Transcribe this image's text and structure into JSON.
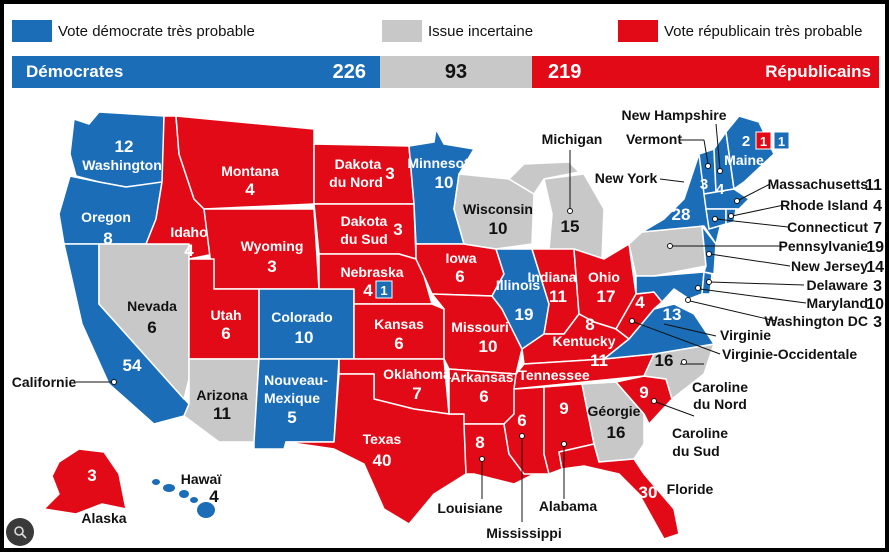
{
  "legend": {
    "dem_label": "Vote démocrate très probable",
    "toss_label": "Issue incertaine",
    "rep_label": "Vote républicain très probable"
  },
  "tally": {
    "dem_name": "Démocrates",
    "dem_votes": "226",
    "toss_votes": "93",
    "rep_votes": "219",
    "rep_name": "Républicains"
  },
  "colors": {
    "dem": "#1a6db6",
    "rep": "#e30a17",
    "toss": "#c8c8c8",
    "dem_light": "#2d7cc4"
  },
  "states": {
    "washington": {
      "name": "Washington",
      "votes": "12"
    },
    "oregon": {
      "name": "Oregon",
      "votes": "8"
    },
    "california": {
      "name": "Californie",
      "votes": "54"
    },
    "nevada": {
      "name": "Nevada",
      "votes": "6"
    },
    "idaho": {
      "name": "Idaho",
      "votes": "4"
    },
    "montana": {
      "name": "Montana",
      "votes": "4"
    },
    "wyoming": {
      "name": "Wyoming",
      "votes": "3"
    },
    "utah": {
      "name": "Utah",
      "votes": "6"
    },
    "arizona": {
      "name": "Arizona",
      "votes": "11"
    },
    "colorado": {
      "name": "Colorado",
      "votes": "10"
    },
    "new_mexico": {
      "name": "Nouveau-Mexique",
      "name1": "Nouveau-",
      "name2": "Mexique",
      "votes": "5"
    },
    "north_dakota": {
      "name1": "Dakota",
      "name2": "du Nord",
      "votes": "3"
    },
    "south_dakota": {
      "name1": "Dakota",
      "name2": "du Sud",
      "votes": "3"
    },
    "nebraska": {
      "name": "Nebraska",
      "votes": "4",
      "split": "1"
    },
    "kansas": {
      "name": "Kansas",
      "votes": "6"
    },
    "oklahoma": {
      "name": "Oklahoma",
      "votes": "7"
    },
    "texas": {
      "name": "Texas",
      "votes": "40"
    },
    "minnesota": {
      "name": "Minnesota",
      "votes": "10"
    },
    "iowa": {
      "name": "Iowa",
      "votes": "6"
    },
    "missouri": {
      "name": "Missouri",
      "votes": "10"
    },
    "arkansas": {
      "name": "Arkansas",
      "votes": "6"
    },
    "louisiana": {
      "name": "Louisiane",
      "votes": "8"
    },
    "wisconsin": {
      "name": "Wisconsin",
      "votes": "10"
    },
    "illinois": {
      "name": "Illinois",
      "votes": "19"
    },
    "michigan": {
      "name": "Michigan",
      "votes": "15"
    },
    "indiana": {
      "name": "Indiana",
      "votes": "11"
    },
    "ohio": {
      "name": "Ohio",
      "votes": "17"
    },
    "kentucky": {
      "name": "Kentucky",
      "votes": "8"
    },
    "tennessee": {
      "name": "Tennessee",
      "votes": "11"
    },
    "mississippi": {
      "name": "Mississippi",
      "votes": "6"
    },
    "alabama": {
      "name": "Alabama",
      "votes": "9"
    },
    "georgia": {
      "name": "Géorgie",
      "votes": "16"
    },
    "florida": {
      "name": "Floride",
      "votes": "30"
    },
    "south_carolina": {
      "name1": "Caroline",
      "name2": "du Sud",
      "votes": "9"
    },
    "north_carolina": {
      "name1": "Caroline",
      "name2": "du Nord",
      "votes": "16"
    },
    "virginia": {
      "name": "Virginie",
      "votes": "13"
    },
    "west_virginia": {
      "name": "Virginie-Occidentale",
      "votes": "4"
    },
    "pennsylvania": {
      "name": "Pennsylvanie",
      "votes": "19"
    },
    "new_york": {
      "name": "New York",
      "votes": "28"
    },
    "vermont": {
      "name": "Vermont",
      "votes": "3"
    },
    "new_hampshire": {
      "name": "New Hampshire",
      "votes": "4"
    },
    "maine": {
      "name": "Maine",
      "votes": "2",
      "split_rep": "1",
      "split_dem": "1"
    },
    "massachusetts": {
      "name": "Massachusetts",
      "votes": "11"
    },
    "rhode_island": {
      "name": "Rhode Island",
      "votes": "4"
    },
    "connecticut": {
      "name": "Connecticut",
      "votes": "7"
    },
    "new_jersey": {
      "name": "New Jersey",
      "votes": "14"
    },
    "delaware": {
      "name": "Delaware",
      "votes": "3"
    },
    "maryland": {
      "name": "Maryland",
      "votes": "10"
    },
    "dc": {
      "name": "Washington DC",
      "votes": "3"
    },
    "alaska": {
      "name": "Alaska",
      "votes": "3"
    },
    "hawaii": {
      "name": "Hawaï",
      "votes": "4"
    }
  }
}
